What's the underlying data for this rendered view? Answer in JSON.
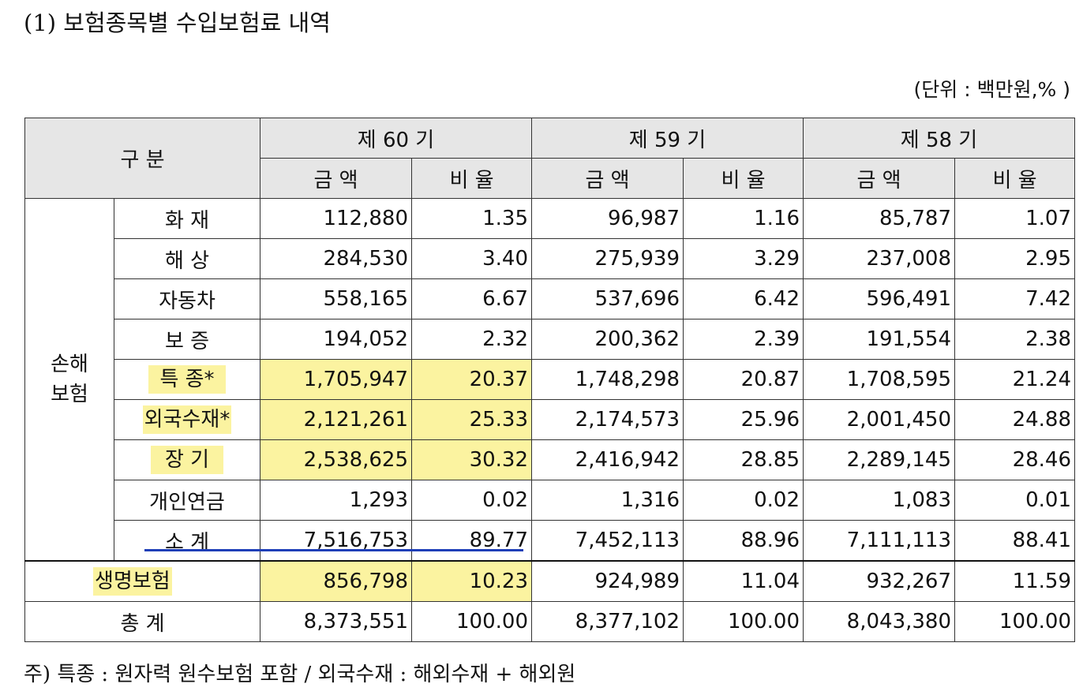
{
  "title": "(1) 보험종목별 수입보험료 내역",
  "unit": "(단위 : 백만원,% )",
  "note": "주) 특종 : 원자력 원수보험 포함 / 외국수재 : 해외수재 + 해외원",
  "header": {
    "category": "구 분",
    "periods": [
      "제 60 기",
      "제 59 기",
      "제 58 기"
    ],
    "amount": "금 액",
    "ratio": "비 율"
  },
  "group_label": "손해\n보험",
  "rows": [
    {
      "label": "화 재",
      "v60": "112,880",
      "r60": "1.35",
      "v59": "96,987",
      "r59": "1.16",
      "v58": "85,787",
      "r58": "1.07"
    },
    {
      "label": "해 상",
      "v60": "284,530",
      "r60": "3.40",
      "v59": "275,939",
      "r59": "3.29",
      "v58": "237,008",
      "r58": "2.95"
    },
    {
      "label": "자동차",
      "v60": "558,165",
      "r60": "6.67",
      "v59": "537,696",
      "r59": "6.42",
      "v58": "596,491",
      "r58": "7.42"
    },
    {
      "label": "보 증",
      "v60": "194,052",
      "r60": "2.32",
      "v59": "200,362",
      "r59": "2.39",
      "v58": "191,554",
      "r58": "2.38"
    },
    {
      "label": "특 종*",
      "v60": "1,705,947",
      "r60": "20.37",
      "v59": "1,748,298",
      "r59": "20.87",
      "v58": "1,708,595",
      "r58": "21.24"
    },
    {
      "label": "외국수재*",
      "v60": "2,121,261",
      "r60": "25.33",
      "v59": "2,174,573",
      "r59": "25.96",
      "v58": "2,001,450",
      "r58": "24.88"
    },
    {
      "label": "장 기",
      "v60": "2,538,625",
      "r60": "30.32",
      "v59": "2,416,942",
      "r59": "28.85",
      "v58": "2,289,145",
      "r58": "28.46"
    },
    {
      "label": "개인연금",
      "v60": "1,293",
      "r60": "0.02",
      "v59": "1,316",
      "r59": "0.02",
      "v58": "1,083",
      "r58": "0.01"
    },
    {
      "label": "소 계",
      "v60": "7,516,753",
      "r60": "89.77",
      "v59": "7,452,113",
      "r59": "88.96",
      "v58": "7,111,113",
      "r58": "88.41"
    }
  ],
  "life": {
    "label": "생명보험",
    "v60": "856,798",
    "r60": "10.23",
    "v59": "924,989",
    "r59": "11.04",
    "v58": "932,267",
    "r58": "11.59"
  },
  "total": {
    "label": "총 계",
    "v60": "8,373,551",
    "r60": "100.00",
    "v59": "8,377,102",
    "r59": "100.00",
    "v58": "8,043,380",
    "r58": "100.00"
  },
  "colors": {
    "highlight": "#fbf3a0",
    "header_bg": "#e6e6e6",
    "underline_mark": "#1f3fb8"
  }
}
